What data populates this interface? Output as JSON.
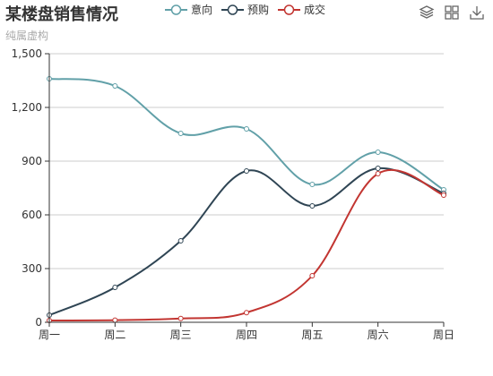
{
  "chart_data": {
    "type": "line",
    "title": "某楼盘销售情况",
    "subtitle": "纯属虚构",
    "categories": [
      "周一",
      "周二",
      "周三",
      "周四",
      "周五",
      "周六",
      "周日"
    ],
    "ylim": [
      0,
      1500
    ],
    "yticks": [
      0,
      300,
      600,
      900,
      1200,
      1500
    ],
    "ytick_labels": [
      "0",
      "300",
      "600",
      "900",
      "1,200",
      "1,500"
    ],
    "grid": true,
    "smooth": true,
    "legend_position": "top",
    "series": [
      {
        "name": "意向",
        "color": "#61a0a8",
        "values": [
          1360,
          1320,
          1055,
          1080,
          770,
          950,
          740
        ]
      },
      {
        "name": "预购",
        "color": "#2f4554",
        "values": [
          40,
          195,
          455,
          845,
          650,
          860,
          720
        ]
      },
      {
        "name": "成交",
        "color": "#c23531",
        "values": [
          10,
          12,
          21,
          54,
          260,
          830,
          710
        ]
      }
    ]
  },
  "toolbox": {
    "icons": [
      "stack-icon",
      "grid-icon",
      "download-icon"
    ]
  }
}
